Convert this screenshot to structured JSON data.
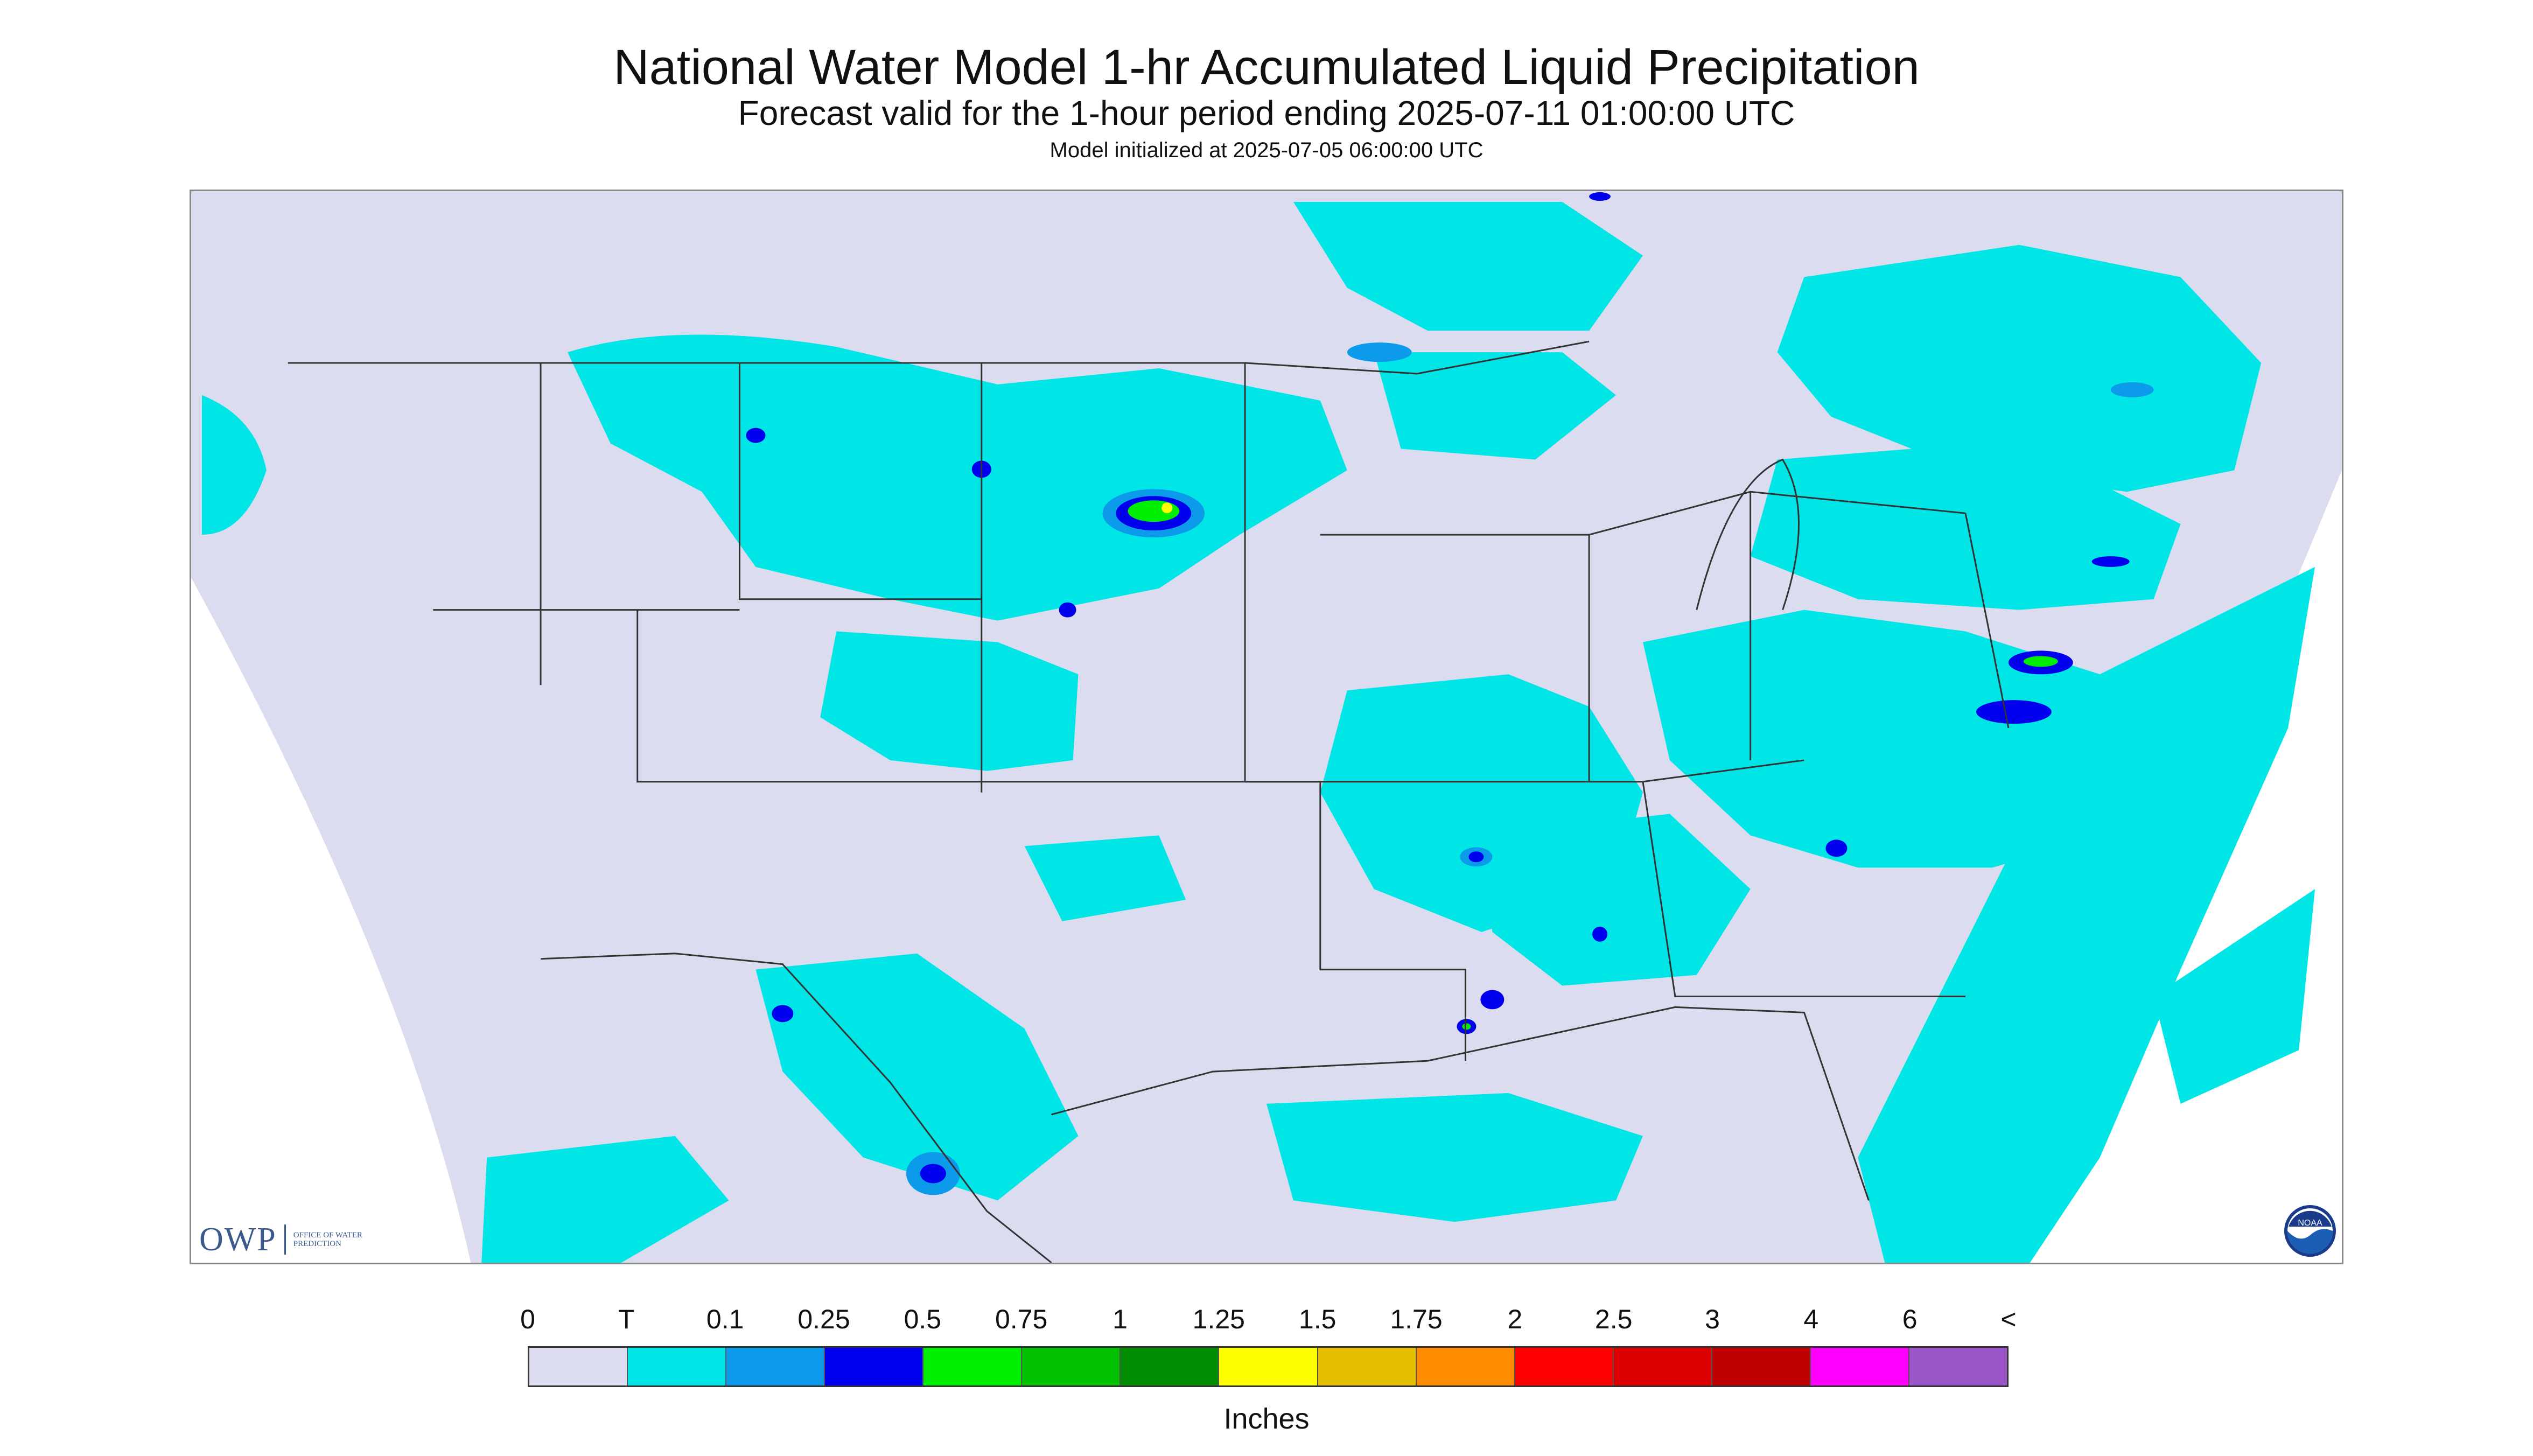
{
  "title": "National Water Model 1-hr Accumulated Liquid Precipitation",
  "subtitle": "Forecast valid for the 1-hour period ending 2025-07-11 01:00:00 UTC",
  "init_text": "Model initialized at 2025-07-05 06:00:00 UTC",
  "logos": {
    "owp_mark": "OWP",
    "owp_text": "OFFICE OF WATER PREDICTION",
    "noaa_mark": "NOAA"
  },
  "legend": {
    "labels": [
      "0",
      "T",
      "0.1",
      "0.25",
      "0.5",
      "0.75",
      "1",
      "1.25",
      "1.5",
      "1.75",
      "2",
      "2.5",
      "3",
      "4",
      "6",
      "<"
    ],
    "colors": [
      "#dcdcf0",
      "#00e5e5",
      "#0b9bea",
      "#0000ee",
      "#00ee00",
      "#00c000",
      "#008c00",
      "#ffff00",
      "#e6c000",
      "#ff8c00",
      "#ff0000",
      "#dd0000",
      "#c00000",
      "#ff00ff",
      "#9b55c9"
    ],
    "units": "Inches"
  },
  "colors": {
    "background": "#dcdcf0",
    "trace": "#00e5e5",
    "light_blue": "#0b9bea",
    "blue": "#0000ee",
    "green": "#00ee00",
    "yellow": "#ffff00"
  }
}
